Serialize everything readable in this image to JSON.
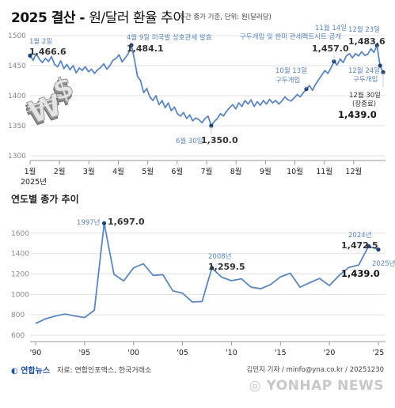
{
  "header": {
    "title": "2025 결산 -",
    "subtitle": "원/달러 환율 추이",
    "note": "주간 종가 기준, 단위: 원(달러당)"
  },
  "chart2_title": "연도별 종가 추이",
  "colors": {
    "line": "#5b86bf",
    "grid": "#dddddd",
    "axis": "#999999"
  },
  "chart_data": [
    {
      "type": "line",
      "title": "",
      "ylim": [
        1300,
        1500
      ],
      "yticks": [
        "1300",
        "1350",
        "1400",
        "1450",
        "1500"
      ],
      "xlabels": [
        "1월",
        "2월",
        "3월",
        "4월",
        "5월",
        "6월",
        "7월",
        "8월",
        "9월",
        "10월",
        "11월",
        "12월"
      ],
      "xyear": "2025년",
      "series": [
        {
          "values": [
            1466.6,
            1459,
            1470,
            1461,
            1455,
            1462,
            1457,
            1465,
            1452,
            1448,
            1458,
            1445,
            1452,
            1443,
            1450,
            1438,
            1446,
            1442,
            1448,
            1440,
            1444,
            1437,
            1443,
            1447,
            1453,
            1444,
            1450,
            1459,
            1462,
            1468,
            1456,
            1463,
            1470,
            1484.1,
            1460,
            1432,
            1425,
            1405,
            1412,
            1398,
            1392,
            1400,
            1385,
            1392,
            1380,
            1388,
            1375,
            1381,
            1370,
            1366,
            1372,
            1362,
            1368,
            1358,
            1363,
            1360,
            1355,
            1362,
            1366,
            1350.0,
            1357,
            1362,
            1370,
            1366,
            1374,
            1380,
            1385,
            1378,
            1388,
            1382,
            1392,
            1386,
            1393,
            1382,
            1390,
            1384,
            1392,
            1386,
            1394,
            1388,
            1392,
            1386,
            1391,
            1398,
            1393,
            1391,
            1396,
            1402,
            1398,
            1405,
            1411,
            1417,
            1409,
            1419,
            1427,
            1434,
            1442,
            1437,
            1446,
            1457.0,
            1451,
            1461,
            1455,
            1466,
            1470,
            1463,
            1470,
            1466,
            1473,
            1467,
            1469,
            1478,
            1472,
            1483.6,
            1450,
            1439.0
          ]
        }
      ],
      "annotations": [
        {
          "date": "1월 2일",
          "value": "1,466.6",
          "idx": 0
        },
        {
          "date": "4월 9일 미국발 상호관세 발효",
          "value": "1,484.1",
          "idx": 33
        },
        {
          "date": "6월 30일",
          "value": "1,350.0",
          "idx": 59
        },
        {
          "date": "10월 13일 구두개입",
          "value": "",
          "idx": 90
        },
        {
          "date": "11월 14일 구두개입 및 한미 관세팩트시트 공개",
          "value": "1,457.0",
          "idx": 99
        },
        {
          "date": "12월 23일",
          "value": "1,483.6",
          "idx": 113
        },
        {
          "date": "12월 24일 구두개입",
          "value": "",
          "idx": 114
        },
        {
          "date": "12월 30일 (장종료)",
          "value": "1,439.0",
          "idx": 115
        }
      ],
      "text": {
        "a1_date": "1월 2일",
        "a1_val": "1,466.6",
        "a2_date": "4월 9일 미국발 상호관세 발효",
        "a2_val": "1,484.1",
        "a3_date": "6월 30일",
        "a3_val": "1,350.0",
        "a4_date": "10월 13일",
        "a4_note": "구두개입",
        "a5_date": "11월 14일",
        "a5_note": "구두개입 및 한미 관세팩트시트 공개",
        "a5_val": "1,457.0",
        "a6_date": "12월 23일",
        "a6_val": "1,483.6",
        "a7_date": "12월 24일",
        "a7_note": "구두개입",
        "a8_date": "12월 30일",
        "a8_note": "(장종료)",
        "a8_val": "1,439.0"
      }
    },
    {
      "type": "line",
      "title": "연도별 종가 추이",
      "ylim": [
        600,
        1800
      ],
      "yticks": [
        "600",
        "800",
        "1000",
        "1200",
        "1400",
        "1600"
      ],
      "x": [
        1990,
        1991,
        1992,
        1993,
        1994,
        1995,
        1996,
        1997,
        1998,
        1999,
        2000,
        2001,
        2002,
        2003,
        2004,
        2005,
        2006,
        2007,
        2008,
        2009,
        2010,
        2011,
        2012,
        2013,
        2014,
        2015,
        2016,
        2017,
        2018,
        2019,
        2020,
        2021,
        2022,
        2023,
        2024,
        2025
      ],
      "xticks": [
        "'90",
        "'95",
        "'00",
        "'05",
        "'10",
        "'15",
        "'20",
        "'25"
      ],
      "series": [
        {
          "values": [
            716,
            760,
            788,
            808,
            789,
            774,
            845,
            1697.0,
            1196,
            1133,
            1260,
            1300,
            1186,
            1193,
            1036,
            1012,
            926,
            930,
            1259.5,
            1168,
            1134,
            1153,
            1071,
            1055,
            1097,
            1172,
            1208,
            1071,
            1115,
            1157,
            1086,
            1188,
            1264,
            1288,
            1472.5,
            1439.0
          ]
        }
      ],
      "text": {
        "b1_year": "1997년",
        "b1_val": "1,697.0",
        "b2_year": "2008년",
        "b2_val": "1,259.5",
        "b3_year": "2024년",
        "b3_val": "1,472.5",
        "b4_year": "2025년",
        "b4_val": "1,439.0"
      }
    }
  ],
  "footer": {
    "logo": "연합뉴스",
    "source": "자료: 연합인포맥스, 한국거래소",
    "credit": "김민지 기자 / minfo@yna.co.kr / 20251230",
    "watermark": "YONHAP NEWS"
  }
}
